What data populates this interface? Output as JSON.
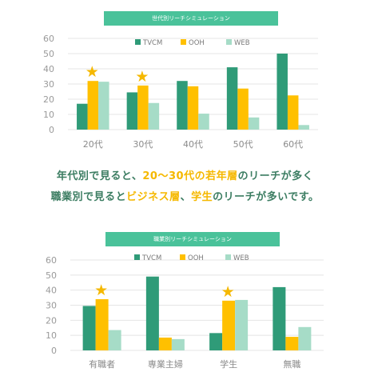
{
  "colors": {
    "banner": "#4ac29a",
    "tvcm": "#2f9b78",
    "ooh": "#ffc000",
    "web": "#a6dcc7",
    "star": "#f5b800",
    "message_text": "#3c7d62",
    "message_highlight": "#f5b800"
  },
  "message": {
    "line1": [
      {
        "text": "年代別で見ると、",
        "highlight": false
      },
      {
        "text": "20～30代の若年層",
        "highlight": true
      },
      {
        "text": "のリーチが多く",
        "highlight": false
      }
    ],
    "line2": [
      {
        "text": "職業別で見ると",
        "highlight": false
      },
      {
        "text": "ビジネス層",
        "highlight": true
      },
      {
        "text": "、",
        "highlight": false
      },
      {
        "text": "学生",
        "highlight": true
      },
      {
        "text": "のリーチが多いです。",
        "highlight": false
      }
    ]
  },
  "chart_data": [
    {
      "type": "bar",
      "title": "世代別リーチシミュレーション",
      "categories": [
        "20代",
        "30代",
        "40代",
        "50代",
        "60代"
      ],
      "series": [
        {
          "name": "TVCM",
          "values": [
            17,
            24.5,
            32,
            41,
            50
          ]
        },
        {
          "name": "OOH",
          "values": [
            32,
            29,
            28.5,
            27,
            22.5
          ]
        },
        {
          "name": "WEB",
          "values": [
            31.5,
            17.5,
            10.5,
            8,
            3
          ]
        }
      ],
      "ylim": [
        0,
        60
      ],
      "yticks": [
        0,
        10,
        20,
        30,
        40,
        50,
        60
      ],
      "grid": true,
      "legend": "top",
      "starred_categories": [
        "20代",
        "30代"
      ],
      "star_symbol": "★"
    },
    {
      "type": "bar",
      "title": "職業別リーチシミュレーション",
      "categories": [
        "有職者",
        "専業主婦",
        "学生",
        "無職"
      ],
      "series": [
        {
          "name": "TVCM",
          "values": [
            29.5,
            49,
            11.5,
            42
          ]
        },
        {
          "name": "OOH",
          "values": [
            34,
            8.5,
            33,
            9
          ]
        },
        {
          "name": "WEB",
          "values": [
            13.5,
            7.5,
            33.5,
            15.5
          ]
        }
      ],
      "ylim": [
        0,
        60
      ],
      "yticks": [
        0,
        10,
        20,
        30,
        40,
        50,
        60
      ],
      "grid": true,
      "legend": "top",
      "starred_categories": [
        "有職者",
        "学生"
      ],
      "star_symbol": "★"
    }
  ]
}
